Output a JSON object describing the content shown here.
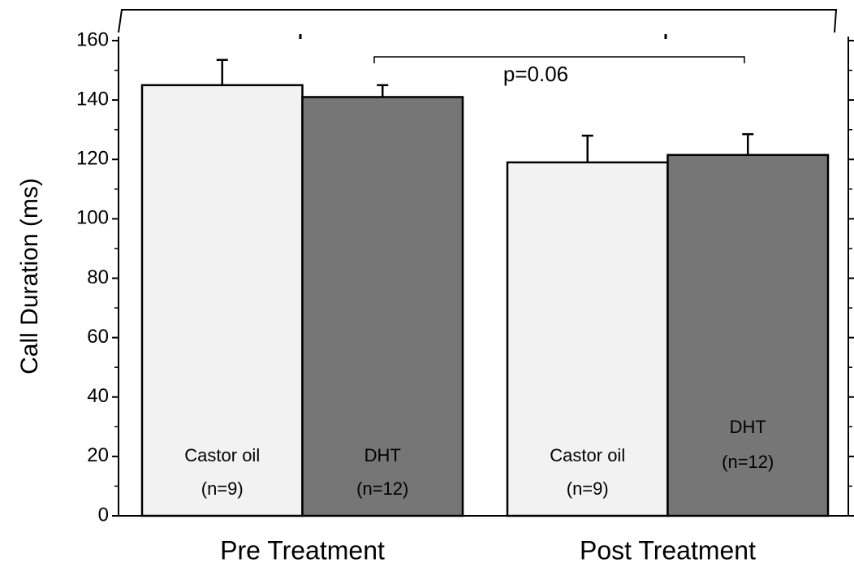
{
  "chart_data": {
    "type": "bar",
    "y_label": "Call Duration (ms)",
    "categories": [
      "Pre Treatment",
      "Post Treatment"
    ],
    "series": [
      {
        "name": "Castor oil",
        "color": "#f2f2f2",
        "values": [
          145,
          119
        ],
        "errors": [
          8.5,
          9
        ],
        "n_labels": [
          "(n=9)",
          "(n=9)"
        ]
      },
      {
        "name": "DHT",
        "color": "#767676",
        "values": [
          141,
          121.5
        ],
        "errors": [
          4,
          7
        ],
        "n_labels": [
          "(n=12)",
          "(n=12)"
        ]
      }
    ],
    "ylim": [
      0,
      160
    ],
    "yticks": [
      0,
      20,
      40,
      60,
      80,
      100,
      120,
      140,
      160
    ],
    "annotation": "p=0.06"
  }
}
